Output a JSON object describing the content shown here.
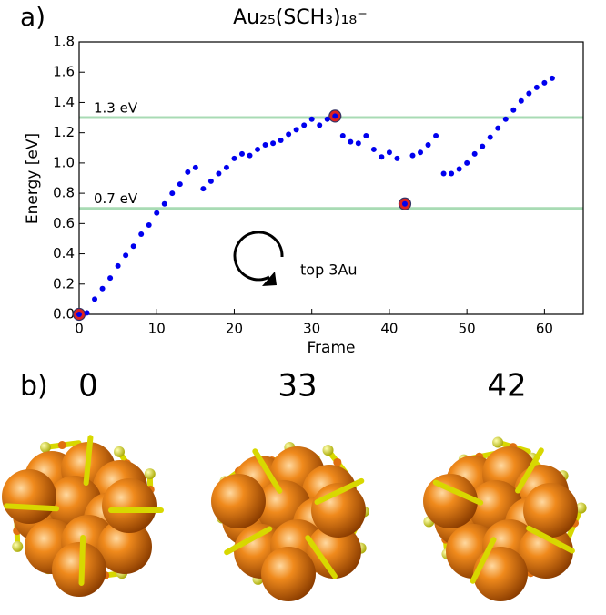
{
  "chart_data": {
    "type": "scatter",
    "panel_label": "a)",
    "title": "Au₂₅(SCH₃)₁₈⁻",
    "x_label": "Frame",
    "y_label": "Energy [eV]",
    "color": "#0000ee",
    "x": [
      0,
      1,
      2,
      3,
      4,
      5,
      6,
      7,
      8,
      9,
      10,
      11,
      12,
      13,
      14,
      15,
      16,
      17,
      18,
      19,
      20,
      21,
      22,
      23,
      24,
      25,
      26,
      27,
      28,
      29,
      30,
      31,
      32,
      33,
      34,
      35,
      36,
      37,
      38,
      39,
      40,
      41,
      42,
      43,
      44,
      45,
      46,
      47,
      48,
      49,
      50,
      51,
      52,
      53,
      54,
      55,
      56,
      57,
      58,
      59,
      60,
      61
    ],
    "values": [
      0.0,
      0.01,
      0.1,
      0.17,
      0.24,
      0.32,
      0.39,
      0.45,
      0.53,
      0.59,
      0.67,
      0.73,
      0.8,
      0.86,
      0.94,
      0.97,
      0.83,
      0.88,
      0.93,
      0.97,
      1.03,
      1.06,
      1.05,
      1.09,
      1.12,
      1.13,
      1.15,
      1.19,
      1.22,
      1.25,
      1.29,
      1.25,
      1.29,
      1.31,
      1.18,
      1.14,
      1.13,
      1.18,
      1.09,
      1.04,
      1.07,
      1.03,
      0.73,
      1.05,
      1.07,
      1.12,
      1.18,
      0.93,
      0.93,
      0.96,
      1.0,
      1.06,
      1.11,
      1.17,
      1.23,
      1.29,
      1.35,
      1.41,
      1.46,
      1.5,
      1.53,
      1.56
    ],
    "highlight": {
      "color": "#dd2222",
      "x": [
        0,
        33,
        42
      ],
      "values": [
        0.0,
        1.31,
        0.73
      ]
    },
    "reference_lines": {
      "color": "#a8dbb4",
      "lines": [
        {
          "value": 1.3,
          "label": "1.3 eV"
        },
        {
          "value": 0.7,
          "label": "0.7 eV"
        }
      ]
    },
    "annotation": "top 3Au",
    "xlim": [
      0,
      65
    ],
    "xticks": [
      0,
      10,
      20,
      30,
      40,
      50,
      60
    ],
    "ylim": [
      0,
      1.8
    ],
    "yticks": [
      {
        "value": 0,
        "label": "0.0"
      },
      0.2,
      0.4,
      0.6,
      0.8,
      {
        "value": 1,
        "label": "1.0"
      },
      1.2,
      1.4,
      1.6,
      1.8
    ]
  },
  "panel_b": {
    "label": "b)",
    "frames": [
      "0",
      "33",
      "42"
    ]
  }
}
